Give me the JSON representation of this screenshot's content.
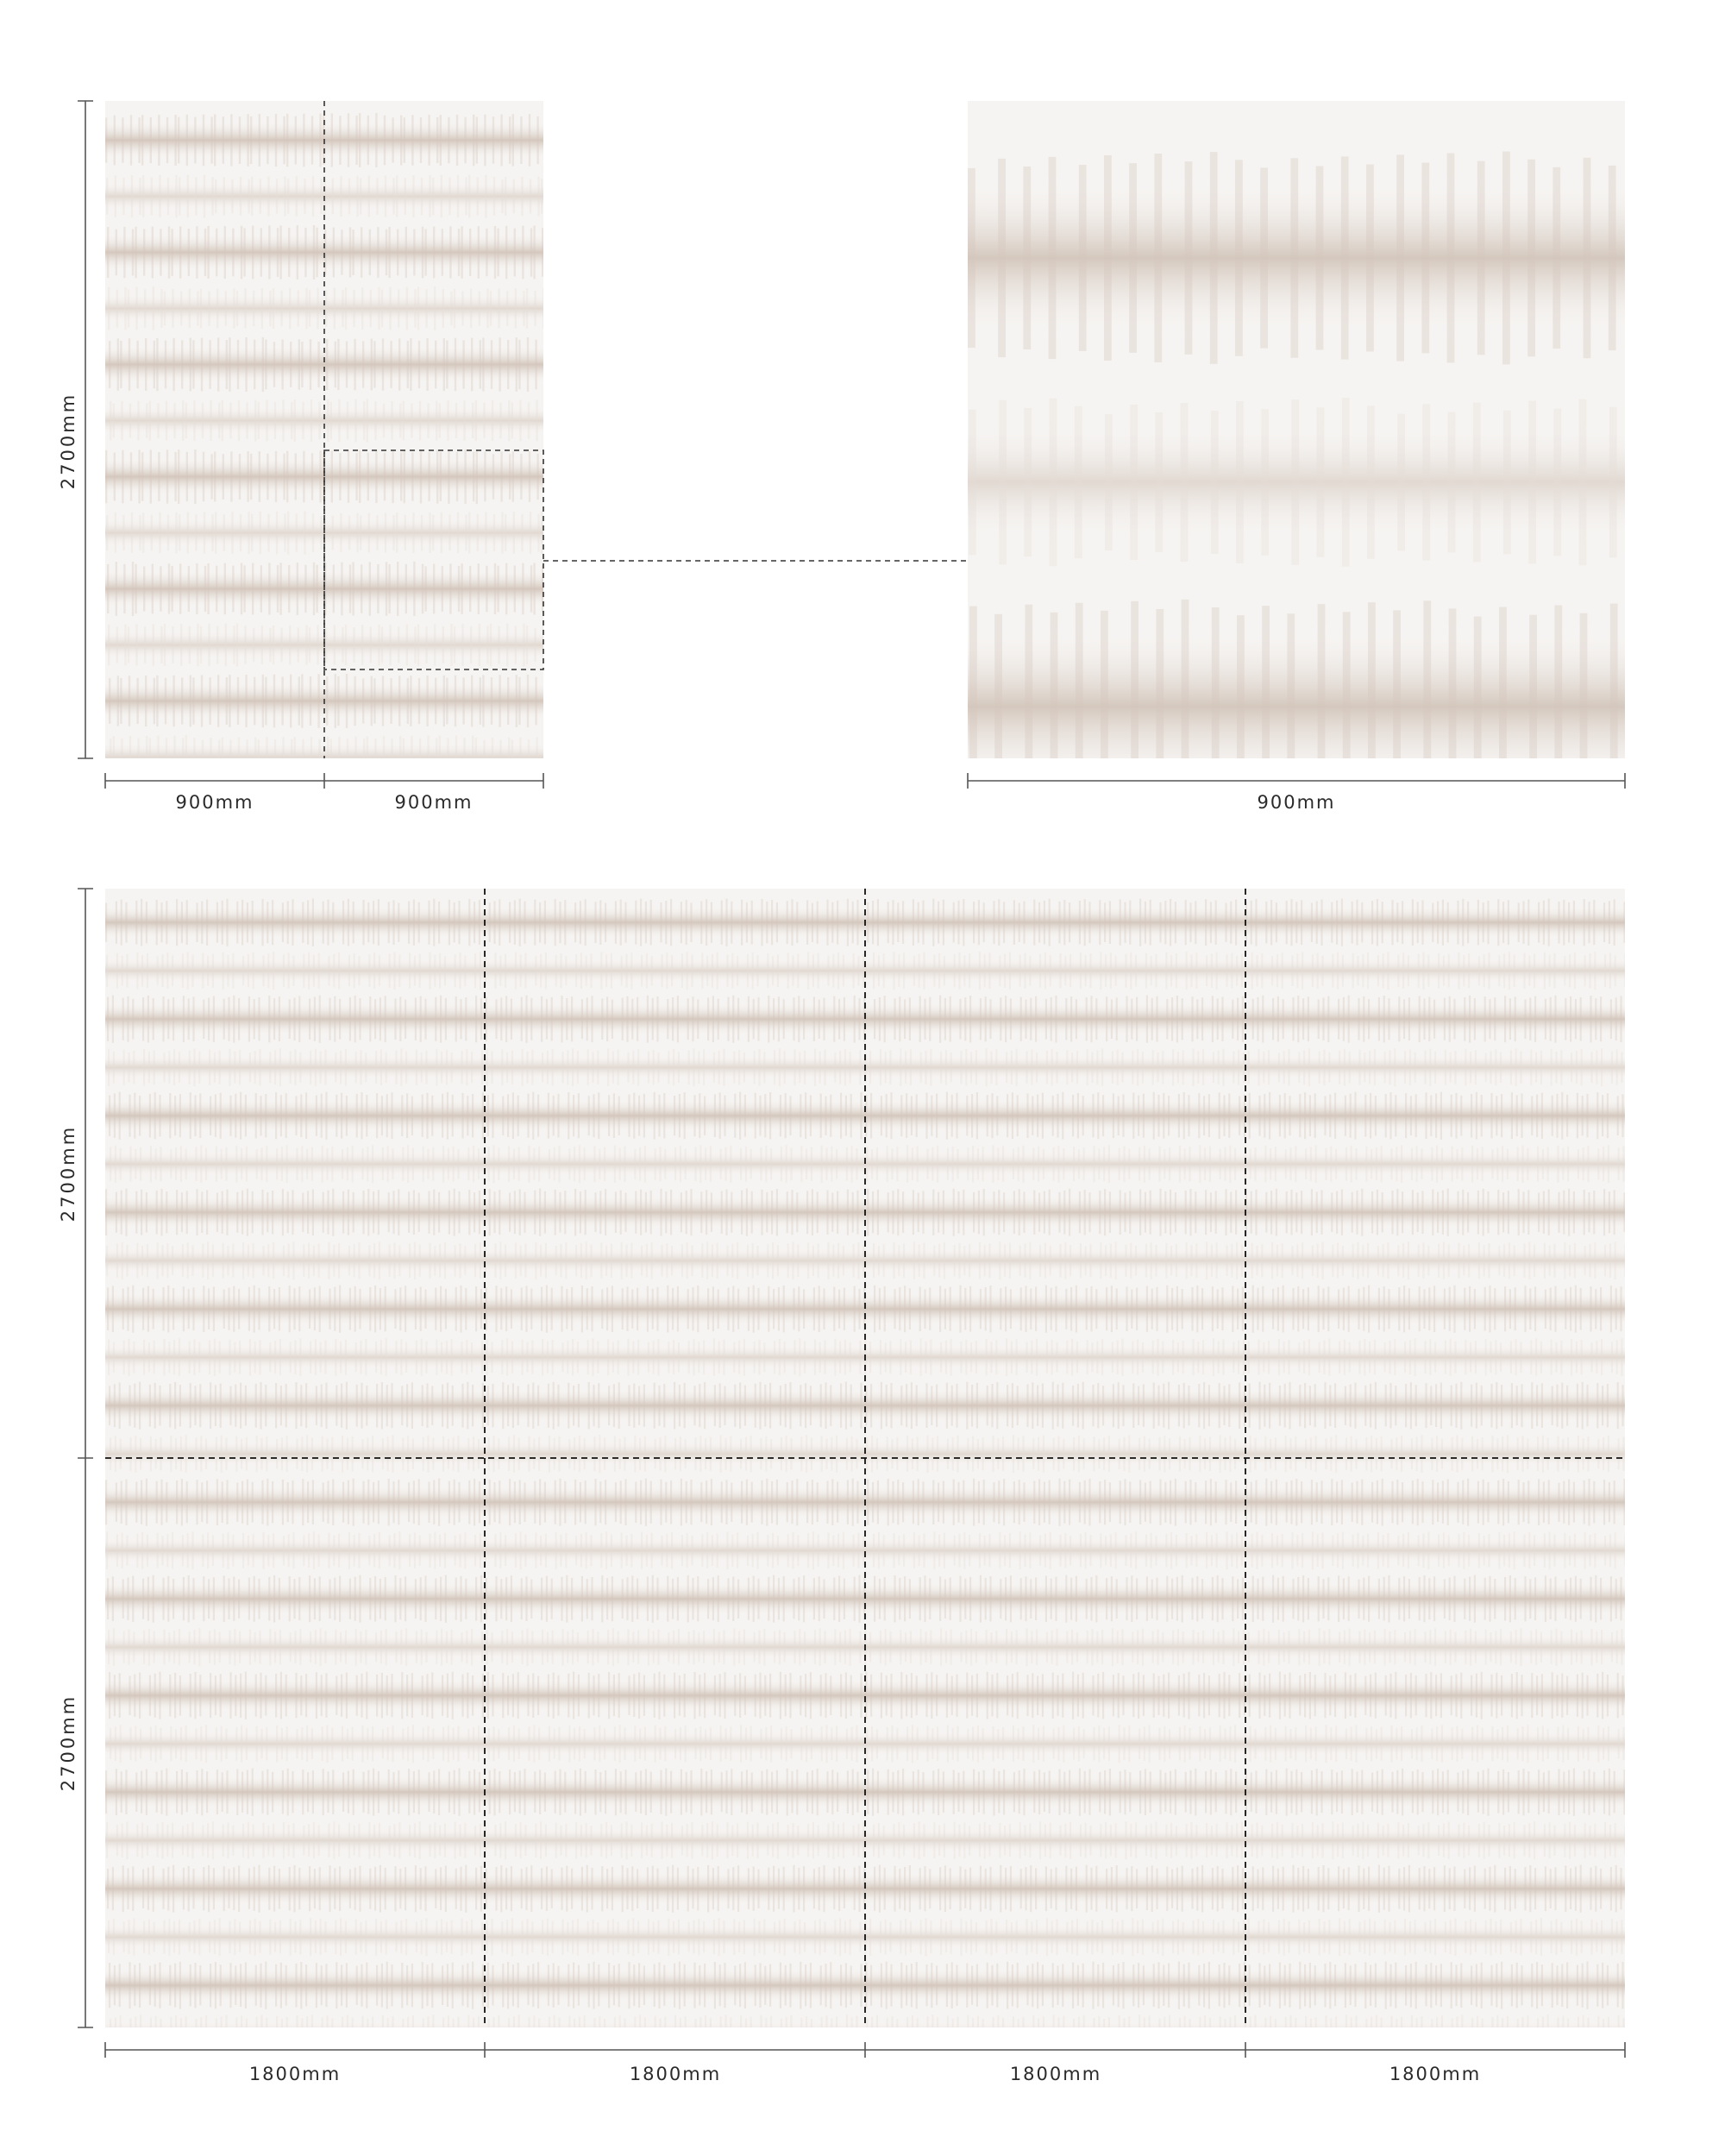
{
  "top_left": {
    "height_label": "2700mm",
    "width_labels": [
      "900mm",
      "900mm"
    ]
  },
  "top_right": {
    "width_label": "900mm"
  },
  "bottom": {
    "height_labels": [
      "2700mm",
      "2700mm"
    ],
    "width_labels": [
      "1800mm",
      "1800mm",
      "1800mm",
      "1800mm"
    ]
  },
  "colors": {
    "pattern_base": "#f6f4f2",
    "pattern_band": "#d3c7bd",
    "pattern_band_light": "#e6ded8",
    "dimension_line": "#555555",
    "seam_line": "#111111"
  }
}
